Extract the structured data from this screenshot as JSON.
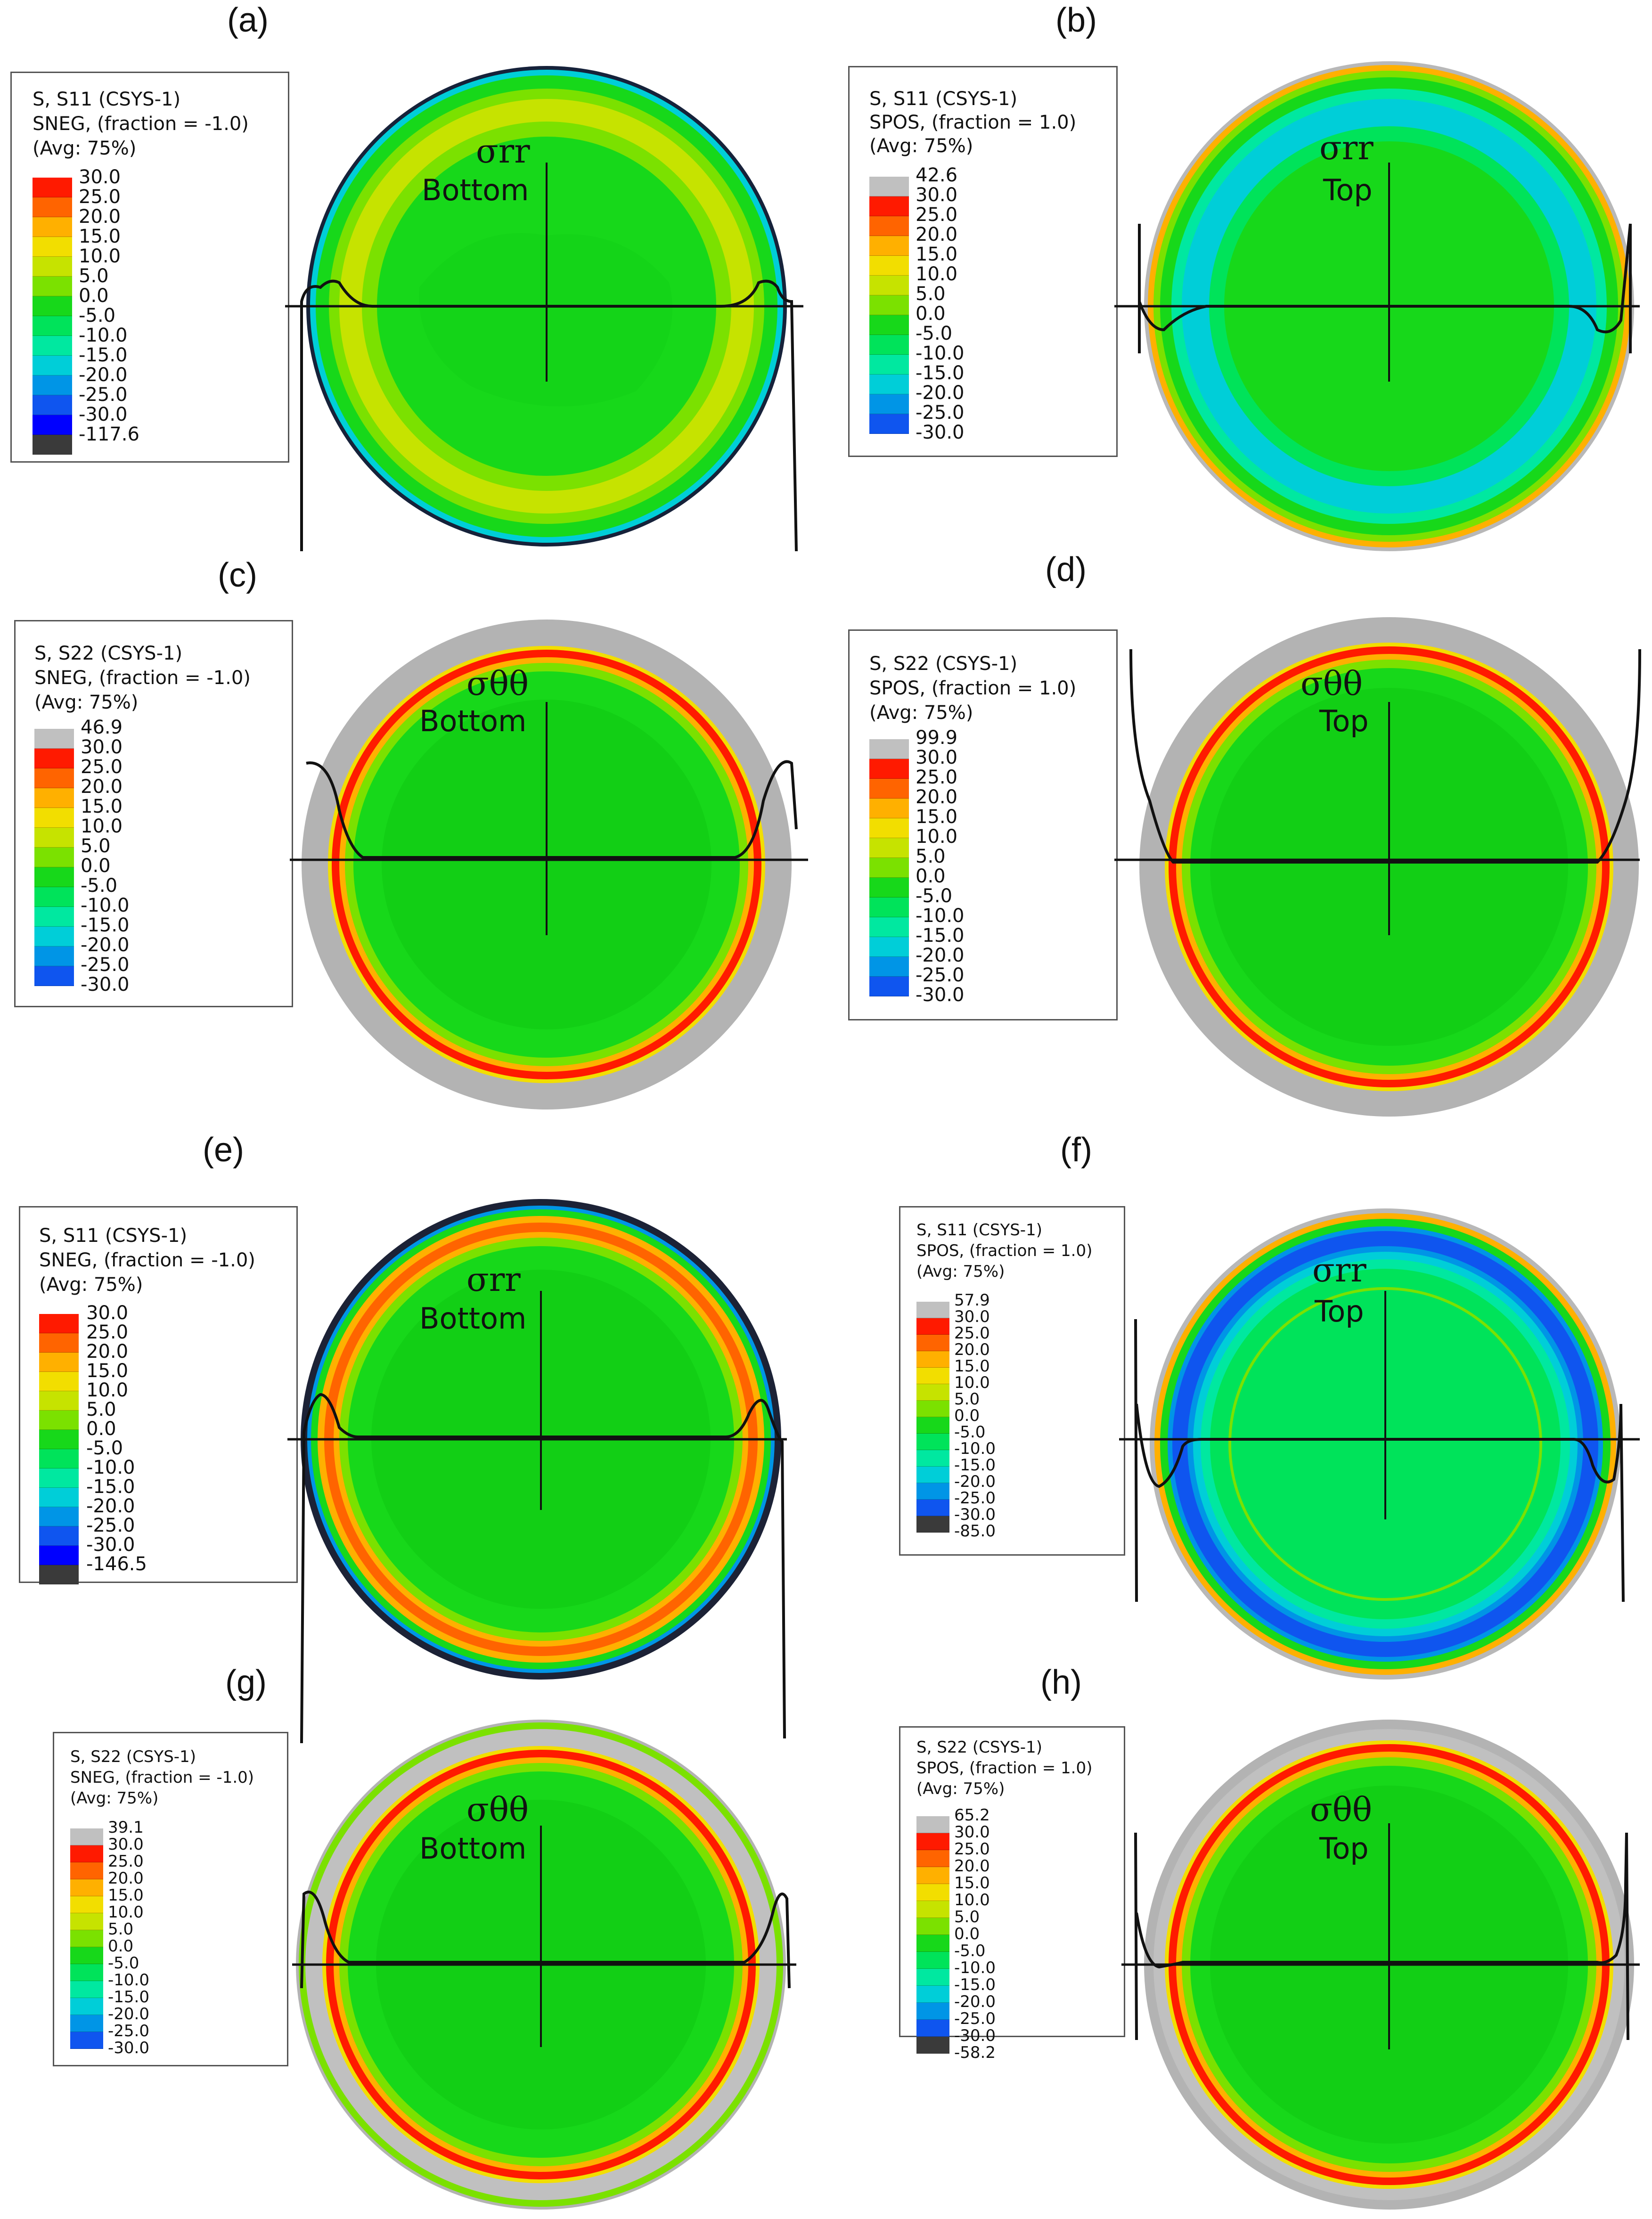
{
  "colormap": [
    "#3a3a3a",
    "#0000ff",
    "#0f55ef",
    "#0095e6",
    "#00ced8",
    "#00e8a0",
    "#00e35a",
    "#17d81a",
    "#7be100",
    "#c6e300",
    "#f2de00",
    "#ffb000",
    "#ff6400",
    "#ff1a00",
    "#c0c0c0"
  ],
  "panels": [
    {
      "letter": "(a)",
      "legend": {
        "line1": "S, S11 (CSYS-1)",
        "line2": "SNEG, (fraction = -1.0)",
        "line3": "(Avg: 75%)",
        "labels": [
          "30.0",
          "25.0",
          "20.0",
          "15.0",
          "10.0",
          "5.0",
          "0.0",
          "-5.0",
          "-10.0",
          "-15.0",
          "-20.0",
          "-25.0",
          "-30.0",
          "-117.6"
        ]
      },
      "annotation": "σrr",
      "surface": "Bottom"
    },
    {
      "letter": "(b)",
      "legend": {
        "line1": "S, S11 (CSYS-1)",
        "line2": "SPOS, (fraction = 1.0)",
        "line3": "(Avg: 75%)",
        "labels": [
          "42.6",
          "30.0",
          "25.0",
          "20.0",
          "15.0",
          "10.0",
          "5.0",
          "0.0",
          "-5.0",
          "-10.0",
          "-15.0",
          "-20.0",
          "-25.0",
          "-30.0"
        ]
      },
      "annotation": "σrr",
      "surface": "Top"
    },
    {
      "letter": "(c)",
      "legend": {
        "line1": "S, S22 (CSYS-1)",
        "line2": "SNEG, (fraction = -1.0)",
        "line3": "(Avg: 75%)",
        "labels": [
          "46.9",
          "30.0",
          "25.0",
          "20.0",
          "15.0",
          "10.0",
          "5.0",
          "0.0",
          "-5.0",
          "-10.0",
          "-15.0",
          "-20.0",
          "-25.0",
          "-30.0"
        ]
      },
      "annotation": "σθθ",
      "surface": "Bottom"
    },
    {
      "letter": "(d)",
      "legend": {
        "line1": "S, S22 (CSYS-1)",
        "line2": "SPOS, (fraction = 1.0)",
        "line3": "(Avg: 75%)",
        "labels": [
          "99.9",
          "30.0",
          "25.0",
          "20.0",
          "15.0",
          "10.0",
          "5.0",
          "0.0",
          "-5.0",
          "-10.0",
          "-15.0",
          "-20.0",
          "-25.0",
          "-30.0"
        ]
      },
      "annotation": "σθθ",
      "surface": "Top"
    },
    {
      "letter": "(e)",
      "legend": {
        "line1": "S, S11 (CSYS-1)",
        "line2": "SNEG, (fraction = -1.0)",
        "line3": "(Avg: 75%)",
        "labels": [
          "30.0",
          "25.0",
          "20.0",
          "15.0",
          "10.0",
          "5.0",
          "0.0",
          "-5.0",
          "-10.0",
          "-15.0",
          "-20.0",
          "-25.0",
          "-30.0",
          "-146.5"
        ]
      },
      "annotation": "σrr",
      "surface": "Bottom"
    },
    {
      "letter": "(f)",
      "legend": {
        "line1": "S, S11 (CSYS-1)",
        "line2": "SPOS, (fraction = 1.0)",
        "line3": "(Avg: 75%)",
        "labels": [
          "57.9",
          "30.0",
          "25.0",
          "20.0",
          "15.0",
          "10.0",
          "5.0",
          "0.0",
          "-5.0",
          "-10.0",
          "-15.0",
          "-20.0",
          "-25.0",
          "-30.0",
          "-85.0"
        ]
      },
      "annotation": "σrr",
      "surface": "Top"
    },
    {
      "letter": "(g)",
      "legend": {
        "line1": "S, S22 (CSYS-1)",
        "line2": "SNEG, (fraction = -1.0)",
        "line3": "(Avg: 75%)",
        "labels": [
          "39.1",
          "30.0",
          "25.0",
          "20.0",
          "15.0",
          "10.0",
          "5.0",
          "0.0",
          "-5.0",
          "-10.0",
          "-15.0",
          "-20.0",
          "-25.0",
          "-30.0"
        ]
      },
      "annotation": "σθθ",
      "surface": "Bottom"
    },
    {
      "letter": "(h)",
      "legend": {
        "line1": "S, S22 (CSYS-1)",
        "line2": "SPOS, (fraction = 1.0)",
        "line3": "(Avg: 75%)",
        "labels": [
          "65.2",
          "30.0",
          "25.0",
          "20.0",
          "15.0",
          "10.0",
          "5.0",
          "0.0",
          "-5.0",
          "-10.0",
          "-15.0",
          "-20.0",
          "-25.0",
          "-30.0",
          "-58.2"
        ]
      },
      "annotation": "σθθ",
      "surface": "Top"
    }
  ]
}
